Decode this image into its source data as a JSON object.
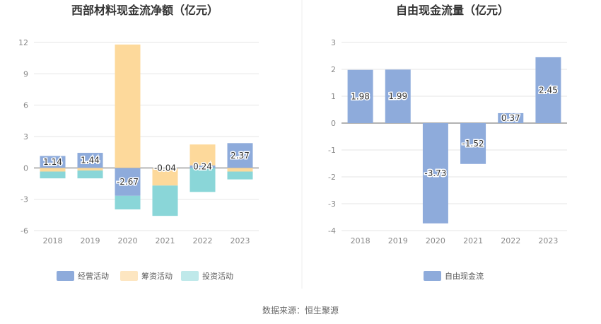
{
  "source": "数据来源：恒生聚源",
  "colors": {
    "operating": "#8eabdb",
    "financing": "#fdd99b",
    "investing": "#8ad6d8",
    "fcf": "#8eabdb",
    "legend_financing": "#fde6c1",
    "legend_investing": "#bfe9ea"
  },
  "chart_data": [
    {
      "type": "bar",
      "stacked": true,
      "title": "西部材料现金流净额（亿元）",
      "categories": [
        "2018",
        "2019",
        "2020",
        "2021",
        "2022",
        "2023"
      ],
      "ylim": [
        -6,
        12
      ],
      "yticks": [
        -6,
        -3,
        0,
        3,
        6,
        9,
        12
      ],
      "grid": true,
      "legend_position": "bottom",
      "series": [
        {
          "name": "经营活动",
          "key": "operating",
          "values": [
            1.14,
            1.44,
            -2.67,
            -0.04,
            0.24,
            2.37
          ],
          "labels": [
            "1.14",
            "1.44",
            "-2.67",
            "-0.04",
            "0.24",
            "2.37"
          ]
        },
        {
          "name": "筹资活动",
          "key": "financing",
          "values": [
            -0.35,
            -0.25,
            11.8,
            -1.65,
            2.0,
            -0.35
          ]
        },
        {
          "name": "投资活动",
          "key": "investing",
          "values": [
            -0.65,
            -0.75,
            -1.3,
            -2.9,
            -2.3,
            -0.75
          ]
        }
      ]
    },
    {
      "type": "bar",
      "title": "自由现金流量（亿元）",
      "categories": [
        "2018",
        "2019",
        "2020",
        "2021",
        "2022",
        "2023"
      ],
      "ylim": [
        -4,
        3
      ],
      "yticks": [
        -4,
        -3,
        -2,
        -1,
        0,
        1,
        2,
        3
      ],
      "grid": true,
      "legend_position": "bottom",
      "series": [
        {
          "name": "自由现金流",
          "key": "fcf",
          "values": [
            1.98,
            1.99,
            -3.73,
            -1.52,
            0.37,
            2.45
          ],
          "labels": [
            "1.98",
            "1.99",
            "-3.73",
            "-1.52",
            "0.37",
            "2.45"
          ]
        }
      ]
    }
  ]
}
